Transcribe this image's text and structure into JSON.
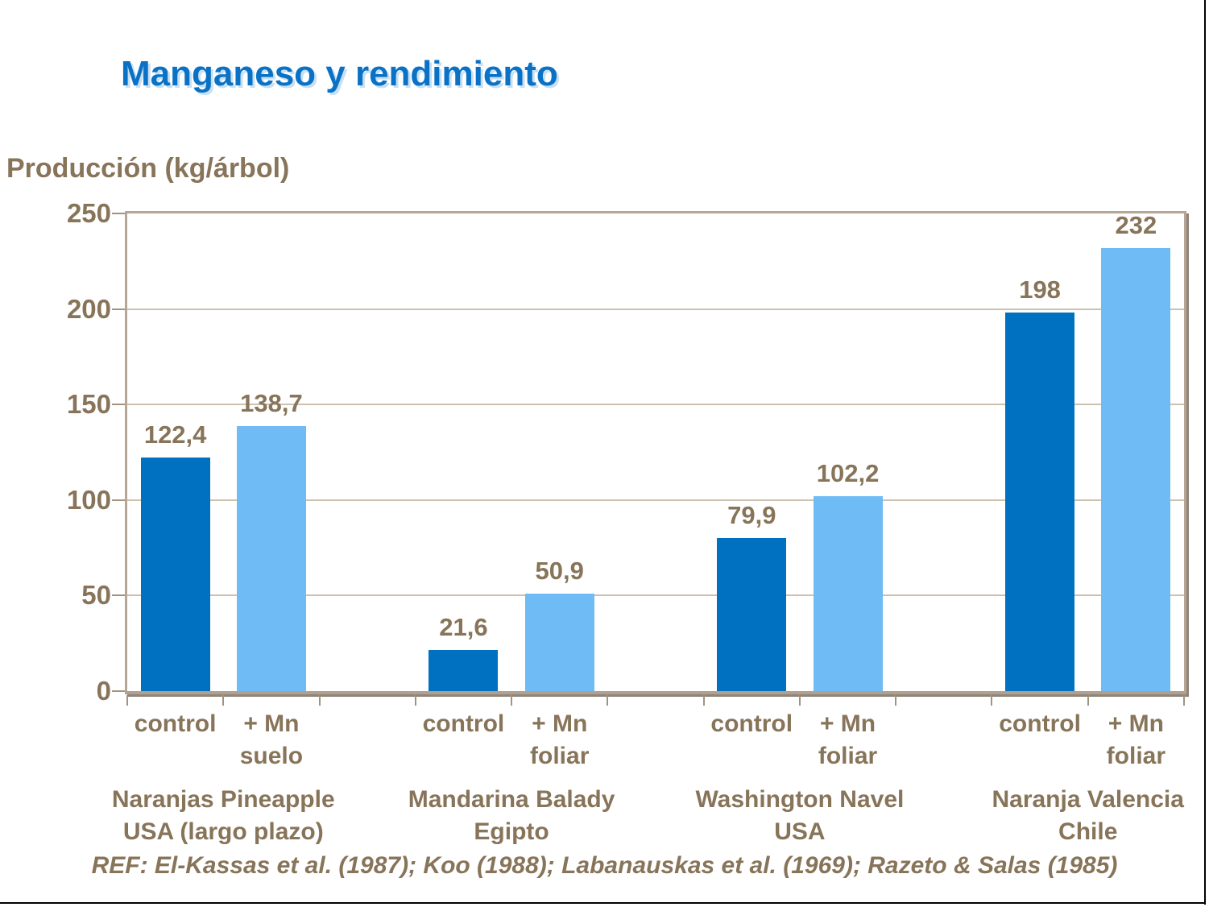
{
  "slide": {
    "title": "Manganeso y rendimiento",
    "footer_ref": "REF: El-Kassas et al. (1987); Koo (1988); Labanauskas et al. (1969); Razeto & Salas (1985)"
  },
  "colors": {
    "title_blue": "#0A72C6",
    "text_brown": "#877459",
    "bar_control": "#0070C0",
    "bar_mn": "#6EBBF6",
    "gridline": "#CCC0B0",
    "axis_tan": "#B5A697",
    "axis_shadow": "#8F8578",
    "frame_black": "#000000"
  },
  "chart_data": {
    "type": "bar",
    "title": "Manganeso y rendimiento",
    "ylabel": "Producción (kg/árbol)",
    "xlabel": "",
    "ylim": [
      0,
      250
    ],
    "yticks": [
      0,
      50,
      100,
      150,
      200,
      250
    ],
    "grid": true,
    "legend": "none",
    "series_names": [
      "control",
      "+ Mn"
    ],
    "groups": [
      {
        "name": "Naranjas Pineapple\nUSA (largo plazo)",
        "bars": [
          {
            "label": "control",
            "series": "control",
            "value": 122.4,
            "value_label": "122,4"
          },
          {
            "label": "+ Mn\nsuelo",
            "series": "mn",
            "value": 138.7,
            "value_label": "138,7"
          }
        ]
      },
      {
        "name": "Mandarina Balady\nEgipto",
        "bars": [
          {
            "label": "control",
            "series": "control",
            "value": 21.6,
            "value_label": "21,6"
          },
          {
            "label": "+ Mn\nfoliar",
            "series": "mn",
            "value": 50.9,
            "value_label": "50,9"
          }
        ]
      },
      {
        "name": "Washington Navel\nUSA",
        "bars": [
          {
            "label": "control",
            "series": "control",
            "value": 79.9,
            "value_label": "79,9"
          },
          {
            "label": "+ Mn\nfoliar",
            "series": "mn",
            "value": 102.2,
            "value_label": "102,2"
          }
        ]
      },
      {
        "name": "Naranja Valencia\nChile",
        "bars": [
          {
            "label": "control",
            "series": "control",
            "value": 198,
            "value_label": "198"
          },
          {
            "label": "+ Mn\nfoliar",
            "series": "mn",
            "value": 232,
            "value_label": "232"
          }
        ]
      }
    ]
  }
}
